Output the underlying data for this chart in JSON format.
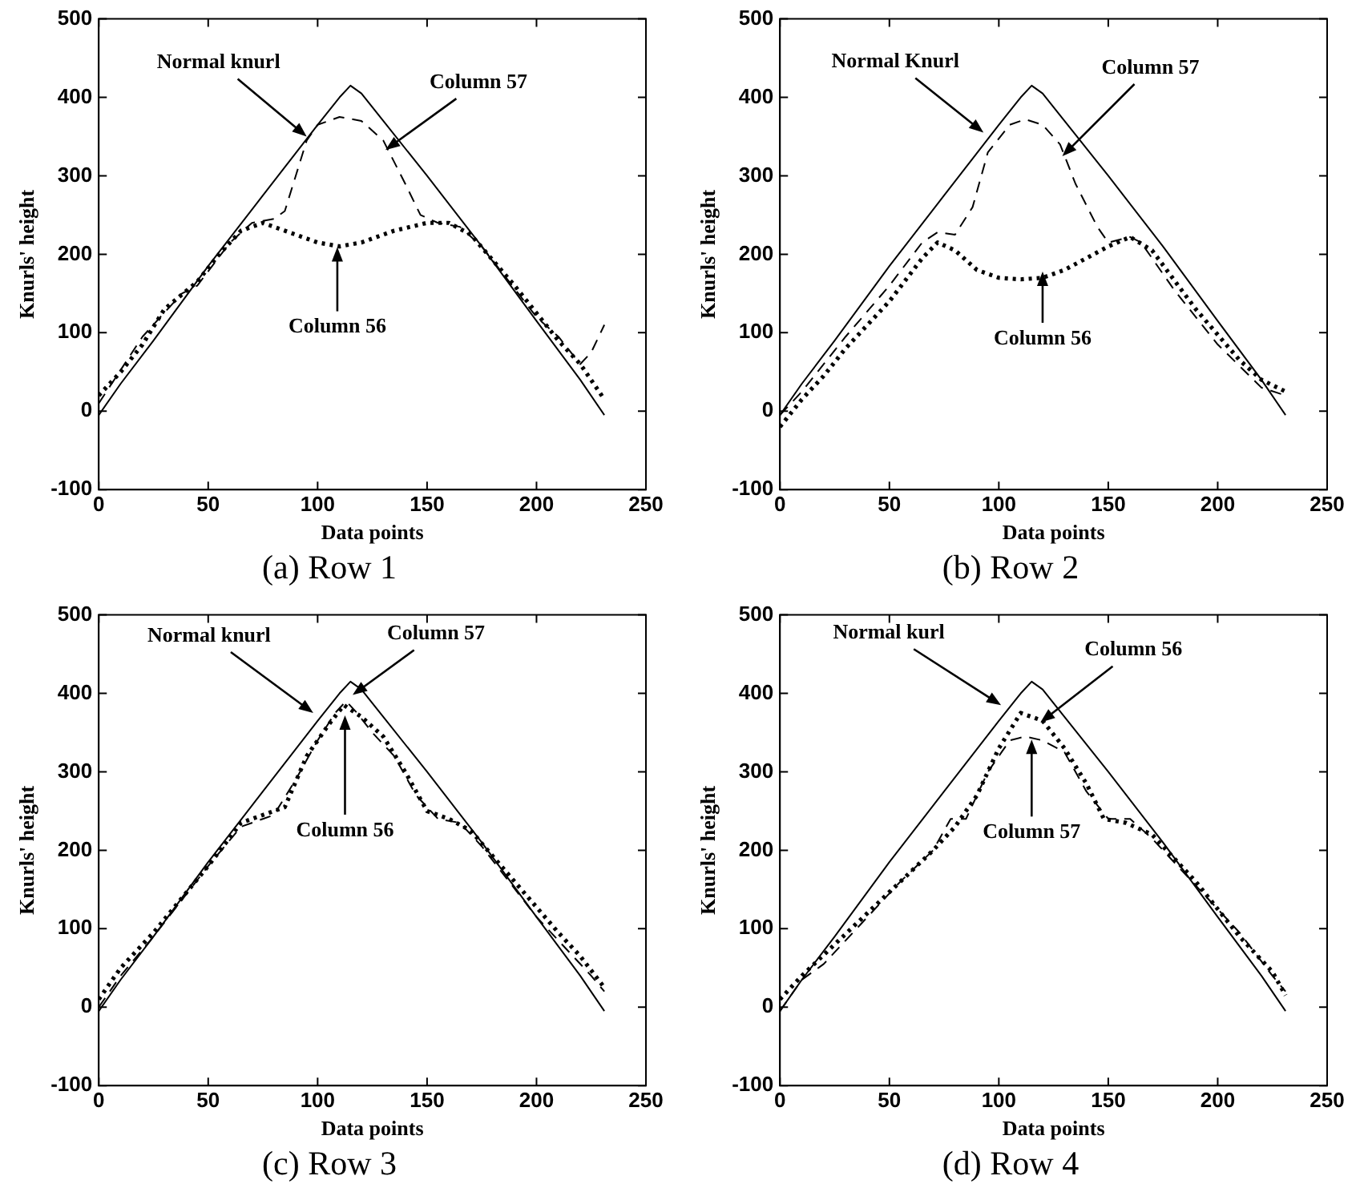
{
  "chart_data": [
    {
      "type": "line",
      "title": "(a) Row 1",
      "xlabel": "Data points",
      "ylabel": "Knurls' height",
      "xlim": [
        0,
        250
      ],
      "ylim": [
        -100,
        500
      ],
      "xticks": [
        0,
        50,
        100,
        150,
        200,
        250
      ],
      "yticks": [
        -100,
        0,
        100,
        200,
        300,
        400,
        500
      ],
      "grid": false,
      "legend": false,
      "series": [
        {
          "color": "#000000",
          "line_style": "solid",
          "x": [
            0,
            10,
            25,
            50,
            75,
            100,
            110,
            115,
            120,
            130,
            150,
            175,
            200,
            220,
            231
          ],
          "values": [
            -5,
            35,
            90,
            185,
            275,
            365,
            400,
            415,
            405,
            370,
            300,
            210,
            115,
            40,
            -5
          ]
        },
        {
          "color": "#000000",
          "line_style": "dashed",
          "x": [
            0,
            20,
            38,
            45,
            60,
            70,
            80,
            85,
            90,
            95,
            100,
            110,
            120,
            130,
            140,
            147,
            155,
            165,
            175,
            200,
            210,
            220,
            225,
            231
          ],
          "values": [
            10,
            95,
            150,
            160,
            215,
            240,
            245,
            255,
            300,
            345,
            365,
            375,
            370,
            345,
            290,
            250,
            240,
            235,
            210,
            120,
            95,
            60,
            75,
            110
          ]
        },
        {
          "color": "#000000",
          "line_style": "dotted",
          "x": [
            0,
            10,
            20,
            30,
            45,
            55,
            65,
            75,
            85,
            100,
            110,
            120,
            135,
            150,
            160,
            170,
            190,
            210,
            220,
            231
          ],
          "values": [
            20,
            50,
            85,
            130,
            165,
            200,
            230,
            240,
            230,
            215,
            210,
            215,
            230,
            240,
            240,
            225,
            160,
            90,
            60,
            15
          ]
        }
      ],
      "annotations": [
        {
          "text": "Normal knurl",
          "x": 95,
          "y": 350
        },
        {
          "text": "Column 57",
          "x": 131,
          "y": 333
        },
        {
          "text": "Column 56",
          "x": 109,
          "y": 209
        }
      ]
    },
    {
      "type": "line",
      "title": "(b) Row 2",
      "xlabel": "Data points",
      "ylabel": "Knurls' height",
      "xlim": [
        0,
        250
      ],
      "ylim": [
        -100,
        500
      ],
      "xticks": [
        0,
        50,
        100,
        150,
        200,
        250
      ],
      "yticks": [
        -100,
        0,
        100,
        200,
        300,
        400,
        500
      ],
      "grid": false,
      "legend": false,
      "series": [
        {
          "color": "#000000",
          "line_style": "solid",
          "x": [
            0,
            10,
            25,
            50,
            75,
            100,
            110,
            115,
            120,
            130,
            150,
            175,
            200,
            220,
            231
          ],
          "values": [
            -5,
            35,
            90,
            185,
            275,
            365,
            400,
            415,
            405,
            370,
            300,
            210,
            115,
            40,
            -5
          ]
        },
        {
          "color": "#000000",
          "line_style": "dashed",
          "x": [
            0,
            10,
            30,
            50,
            65,
            72,
            80,
            88,
            95,
            105,
            112,
            120,
            128,
            135,
            145,
            150,
            160,
            165,
            180,
            200,
            220,
            231
          ],
          "values": [
            -5,
            25,
            95,
            160,
            215,
            228,
            225,
            260,
            330,
            365,
            372,
            365,
            340,
            290,
            235,
            215,
            222,
            215,
            155,
            85,
            30,
            20
          ]
        },
        {
          "color": "#000000",
          "line_style": "dotted",
          "x": [
            0,
            10,
            20,
            30,
            50,
            65,
            72,
            80,
            90,
            100,
            110,
            120,
            130,
            140,
            150,
            160,
            170,
            190,
            210,
            220,
            231
          ],
          "values": [
            -20,
            15,
            45,
            80,
            140,
            195,
            215,
            205,
            180,
            170,
            168,
            170,
            180,
            195,
            210,
            222,
            205,
            130,
            65,
            40,
            25
          ]
        }
      ],
      "annotations": [
        {
          "text": "Normal Knurl",
          "x": 93,
          "y": 355
        },
        {
          "text": "Column 57",
          "x": 129,
          "y": 325
        },
        {
          "text": "Column 56",
          "x": 120,
          "y": 178
        }
      ]
    },
    {
      "type": "line",
      "title": "(c) Row 3",
      "xlabel": "Data points",
      "ylabel": "Knurls' height",
      "xlim": [
        0,
        250
      ],
      "ylim": [
        -100,
        500
      ],
      "xticks": [
        0,
        50,
        100,
        150,
        200,
        250
      ],
      "yticks": [
        -100,
        0,
        100,
        200,
        300,
        400,
        500
      ],
      "grid": false,
      "legend": false,
      "series": [
        {
          "color": "#000000",
          "line_style": "solid",
          "x": [
            0,
            10,
            25,
            50,
            75,
            100,
            110,
            115,
            120,
            130,
            150,
            175,
            200,
            220,
            231
          ],
          "values": [
            -5,
            35,
            90,
            185,
            275,
            365,
            400,
            415,
            405,
            370,
            300,
            210,
            115,
            40,
            -5
          ]
        },
        {
          "color": "#000000",
          "line_style": "dashed",
          "x": [
            0,
            10,
            25,
            50,
            65,
            75,
            80,
            90,
            100,
            108,
            113,
            118,
            125,
            135,
            145,
            155,
            165,
            175,
            200,
            215,
            225,
            231
          ],
          "values": [
            0,
            40,
            90,
            180,
            230,
            240,
            245,
            290,
            340,
            375,
            390,
            375,
            350,
            320,
            270,
            240,
            235,
            205,
            115,
            70,
            40,
            20
          ]
        },
        {
          "color": "#000000",
          "line_style": "dotted",
          "x": [
            0,
            10,
            25,
            50,
            65,
            75,
            85,
            95,
            105,
            112,
            120,
            130,
            140,
            150,
            160,
            170,
            190,
            210,
            220,
            231
          ],
          "values": [
            10,
            50,
            95,
            180,
            235,
            245,
            255,
            320,
            360,
            385,
            370,
            345,
            300,
            250,
            240,
            225,
            160,
            95,
            65,
            25
          ]
        }
      ],
      "annotations": [
        {
          "text": "Normal knurl",
          "x": 98,
          "y": 375
        },
        {
          "text": "Column 57",
          "x": 116,
          "y": 398
        },
        {
          "text": "Column 56",
          "x": 112.5,
          "y": 372
        }
      ]
    },
    {
      "type": "line",
      "title": "(d) Row 4",
      "xlabel": "Data points",
      "ylabel": "Knurls' height",
      "xlim": [
        0,
        250
      ],
      "ylim": [
        -100,
        500
      ],
      "xticks": [
        0,
        50,
        100,
        150,
        200,
        250
      ],
      "yticks": [
        -100,
        0,
        100,
        200,
        300,
        400,
        500
      ],
      "grid": false,
      "legend": false,
      "series": [
        {
          "color": "#000000",
          "line_style": "solid",
          "x": [
            0,
            10,
            25,
            50,
            75,
            100,
            110,
            115,
            120,
            130,
            150,
            175,
            200,
            220,
            231
          ],
          "values": [
            -5,
            35,
            90,
            185,
            275,
            365,
            400,
            415,
            405,
            370,
            300,
            210,
            115,
            40,
            -5
          ]
        },
        {
          "color": "#000000",
          "line_style": "dashed",
          "x": [
            0,
            10,
            20,
            40,
            55,
            70,
            78,
            85,
            95,
            105,
            112,
            120,
            130,
            140,
            150,
            160,
            170,
            190,
            210,
            225,
            231
          ],
          "values": [
            -5,
            35,
            55,
            115,
            160,
            200,
            240,
            240,
            300,
            340,
            345,
            340,
            325,
            275,
            240,
            240,
            215,
            155,
            95,
            40,
            20
          ]
        },
        {
          "color": "#000000",
          "line_style": "dotted",
          "x": [
            0,
            10,
            25,
            40,
            55,
            70,
            80,
            90,
            100,
            110,
            120,
            130,
            140,
            148,
            158,
            170,
            190,
            210,
            225,
            231
          ],
          "values": [
            10,
            40,
            80,
            120,
            160,
            200,
            230,
            270,
            330,
            375,
            365,
            330,
            285,
            240,
            235,
            220,
            160,
            90,
            45,
            15
          ]
        }
      ],
      "annotations": [
        {
          "text": "Normal kurl",
          "x": 101,
          "y": 385
        },
        {
          "text": "Column 56",
          "x": 119,
          "y": 363
        },
        {
          "text": "Column 57",
          "x": 115,
          "y": 341
        }
      ]
    }
  ]
}
